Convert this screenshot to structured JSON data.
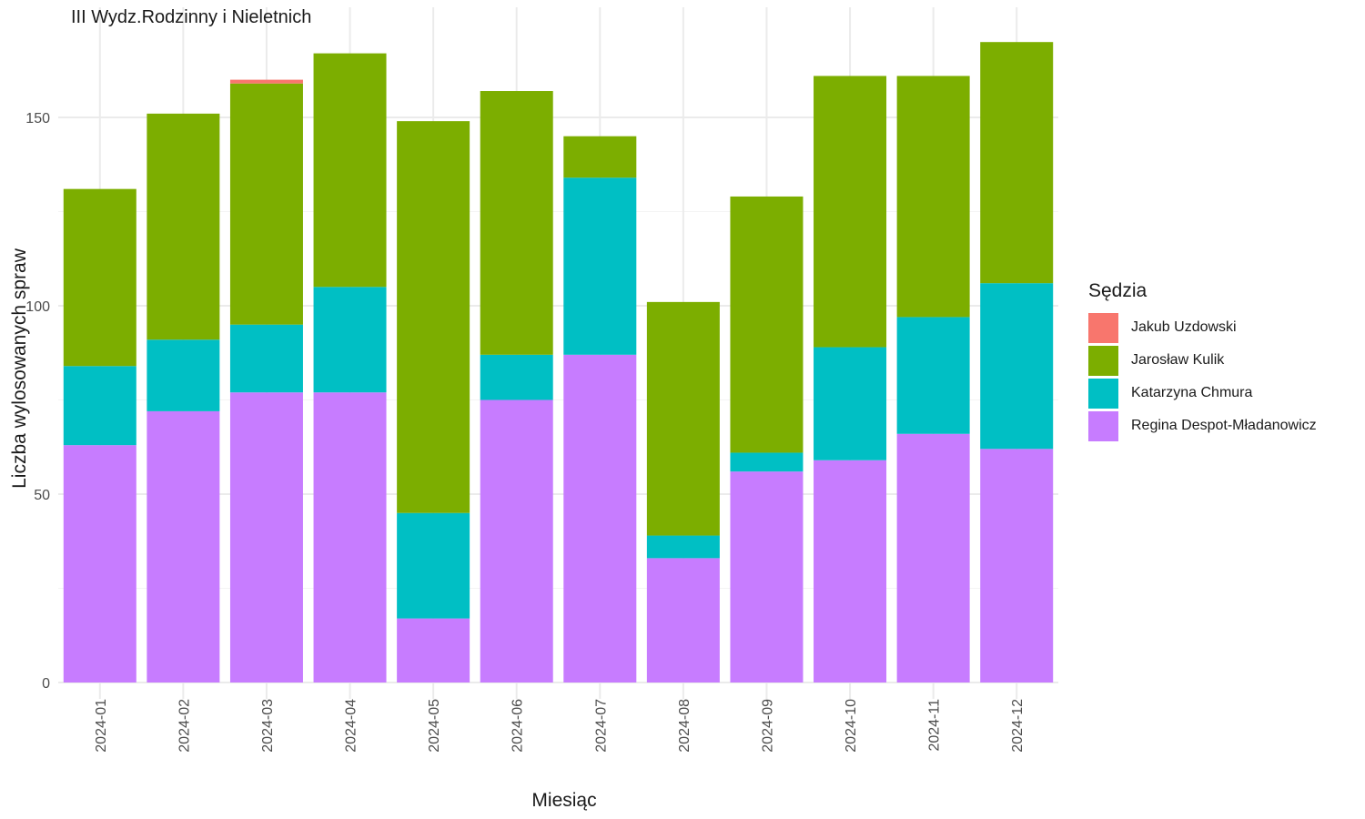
{
  "chart_data": {
    "type": "bar",
    "stacked": true,
    "title": "III Wydz.Rodzinny i Nieletnich",
    "xlabel": "Miesiąc",
    "ylabel": "Liczba wylosowanych spraw",
    "ylim": [
      0,
      172
    ],
    "yticks": [
      0,
      50,
      100,
      150
    ],
    "ytick_labels": [
      "0",
      "50",
      "100",
      "150"
    ],
    "grid": true,
    "legend_title": "Sędzia",
    "legend_position": "right",
    "categories": [
      "2024-01",
      "2024-02",
      "2024-03",
      "2024-04",
      "2024-05",
      "2024-06",
      "2024-07",
      "2024-08",
      "2024-09",
      "2024-10",
      "2024-11",
      "2024-12"
    ],
    "series": [
      {
        "name": "Jakub Uzdowski",
        "color": "#F8766D",
        "values": [
          0,
          0,
          1,
          0,
          0,
          0,
          0,
          0,
          0,
          0,
          0,
          0
        ]
      },
      {
        "name": "Jarosław Kulik",
        "color": "#7CAE00",
        "values": [
          47,
          60,
          64,
          62,
          104,
          70,
          11,
          62,
          68,
          72,
          64,
          64
        ]
      },
      {
        "name": "Katarzyna Chmura",
        "color": "#00BFC4",
        "values": [
          21,
          19,
          18,
          28,
          28,
          12,
          47,
          6,
          5,
          30,
          31,
          44
        ]
      },
      {
        "name": "Regina Despot-Mładanowicz",
        "color": "#C77CFF",
        "values": [
          63,
          72,
          77,
          77,
          17,
          75,
          87,
          33,
          56,
          59,
          66,
          62
        ]
      }
    ]
  }
}
